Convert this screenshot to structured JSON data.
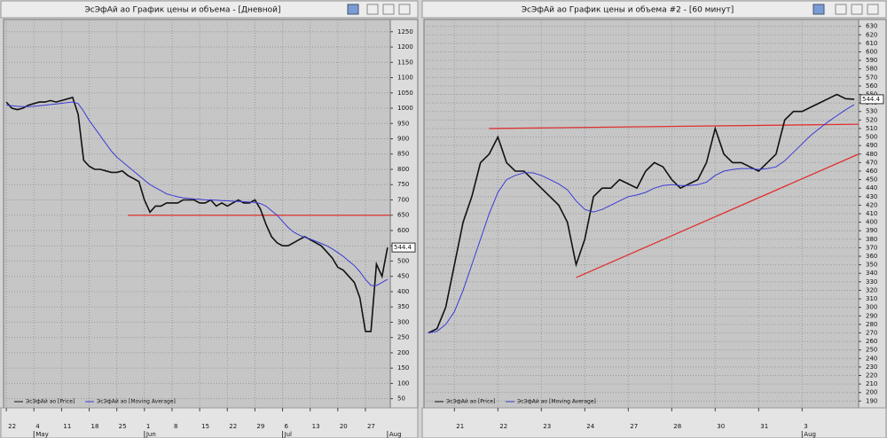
{
  "chart_data": [
    {
      "type": "line",
      "title": "ЭсЭфАй ао График цены и объема - [Дневной]",
      "categories": [
        "22",
        null,
        null,
        null,
        null,
        "4",
        null,
        null,
        null,
        null,
        "11",
        null,
        null,
        null,
        null,
        "18",
        null,
        null,
        null,
        null,
        "25",
        null,
        null,
        null,
        null,
        "1",
        null,
        null,
        null,
        null,
        "8",
        null,
        null,
        null,
        null,
        "15",
        null,
        null,
        null,
        null,
        "22",
        null,
        null,
        null,
        null,
        "29",
        null,
        null,
        null,
        null,
        "6",
        null,
        null,
        null,
        null,
        "13",
        null,
        null,
        null,
        null,
        "20",
        null,
        null,
        null,
        null,
        "27",
        null,
        null,
        null,
        null
      ],
      "months": [
        {
          "label": "May",
          "index": 5
        },
        {
          "label": "Jun",
          "index": 25
        },
        {
          "label": "Jul",
          "index": 50
        },
        {
          "label": "Aug",
          "index": 69
        }
      ],
      "series": [
        {
          "name": "ЭсЭфАй ао [Price]",
          "color": "#111111",
          "values": [
            1020,
            1000,
            995,
            1000,
            1010,
            1015,
            1020,
            1020,
            1025,
            1020,
            1025,
            1030,
            1035,
            980,
            830,
            810,
            800,
            800,
            795,
            790,
            790,
            795,
            780,
            770,
            760,
            700,
            660,
            680,
            680,
            690,
            690,
            690,
            700,
            700,
            700,
            690,
            690,
            700,
            680,
            690,
            680,
            690,
            700,
            690,
            690,
            700,
            670,
            620,
            580,
            560,
            550,
            550,
            560,
            570,
            580,
            570,
            560,
            550,
            530,
            510,
            480,
            470,
            450,
            430,
            380,
            270,
            270,
            490,
            450,
            544.4
          ]
        },
        {
          "name": "ЭсЭфАй ао [Moving Average]",
          "color": "#3b3bd6",
          "values": [
            1010,
            1008,
            1006,
            1005,
            1005,
            1006,
            1008,
            1010,
            1012,
            1014,
            1016,
            1018,
            1020,
            1015,
            990,
            960,
            935,
            910,
            885,
            860,
            840,
            825,
            810,
            795,
            780,
            765,
            750,
            740,
            730,
            720,
            715,
            710,
            707,
            705,
            703,
            702,
            700,
            700,
            699,
            698,
            697,
            696,
            695,
            694,
            693,
            692,
            688,
            680,
            665,
            650,
            630,
            610,
            595,
            585,
            578,
            572,
            565,
            558,
            550,
            540,
            528,
            515,
            500,
            485,
            465,
            440,
            420,
            420,
            430,
            440
          ]
        }
      ],
      "last_value": 544.4,
      "trendlines": [
        {
          "color": "#e03030",
          "y_start": 650,
          "y_end": 650
        }
      ],
      "ylim": [
        20,
        1290
      ],
      "yticks": [
        50,
        100,
        150,
        200,
        250,
        300,
        350,
        400,
        450,
        500,
        550,
        600,
        650,
        700,
        750,
        800,
        850,
        900,
        950,
        1000,
        1050,
        1100,
        1150,
        1200,
        1250
      ],
      "grid": true
    },
    {
      "type": "line",
      "title": "ЭсЭфАй ао График цены и объема #2 - [60 минут]",
      "categories": [
        null,
        null,
        null,
        "21",
        null,
        null,
        null,
        null,
        "22",
        null,
        null,
        null,
        null,
        "23",
        null,
        null,
        null,
        null,
        "24",
        null,
        null,
        null,
        null,
        "27",
        null,
        null,
        null,
        null,
        "28",
        null,
        null,
        null,
        null,
        "30",
        null,
        null,
        null,
        null,
        "31",
        null,
        null,
        null,
        null,
        "3",
        null,
        null,
        null,
        null,
        null,
        null
      ],
      "months": [
        {
          "label": "Aug",
          "index": 43
        }
      ],
      "series": [
        {
          "name": "ЭсЭфАй ао [Price]",
          "color": "#111111",
          "values": [
            270,
            275,
            300,
            350,
            400,
            430,
            470,
            480,
            500,
            470,
            460,
            460,
            450,
            440,
            430,
            420,
            400,
            350,
            380,
            430,
            440,
            440,
            450,
            445,
            440,
            460,
            470,
            465,
            450,
            440,
            445,
            450,
            470,
            510,
            480,
            470,
            470,
            465,
            460,
            470,
            480,
            520,
            530,
            530,
            535,
            540,
            545,
            550,
            545,
            544.4
          ]
        },
        {
          "name": "ЭсЭфАй ао [Moving Average]",
          "color": "#3b3bd6",
          "values": [
            270,
            272,
            280,
            295,
            320,
            350,
            380,
            410,
            435,
            450,
            455,
            458,
            458,
            455,
            450,
            445,
            438,
            425,
            415,
            412,
            415,
            420,
            425,
            430,
            432,
            435,
            440,
            443,
            444,
            443,
            443,
            444,
            447,
            455,
            460,
            462,
            463,
            463,
            462,
            463,
            465,
            472,
            482,
            492,
            502,
            510,
            518,
            525,
            532,
            538
          ]
        }
      ],
      "last_value": 544.4,
      "trendlines": [
        {
          "color": "#e03030",
          "y_start": 510,
          "y_end": 515
        },
        {
          "color": "#e03030",
          "y_start": 335,
          "y_end": 480
        }
      ],
      "ylim": [
        182,
        638
      ],
      "yticks": [
        190,
        200,
        210,
        220,
        230,
        240,
        250,
        260,
        270,
        280,
        290,
        300,
        310,
        320,
        330,
        340,
        350,
        360,
        370,
        380,
        390,
        400,
        410,
        420,
        430,
        440,
        450,
        460,
        470,
        480,
        490,
        500,
        510,
        520,
        530,
        540,
        550,
        560,
        570,
        580,
        590,
        600,
        610,
        620,
        630
      ],
      "grid": true
    }
  ]
}
